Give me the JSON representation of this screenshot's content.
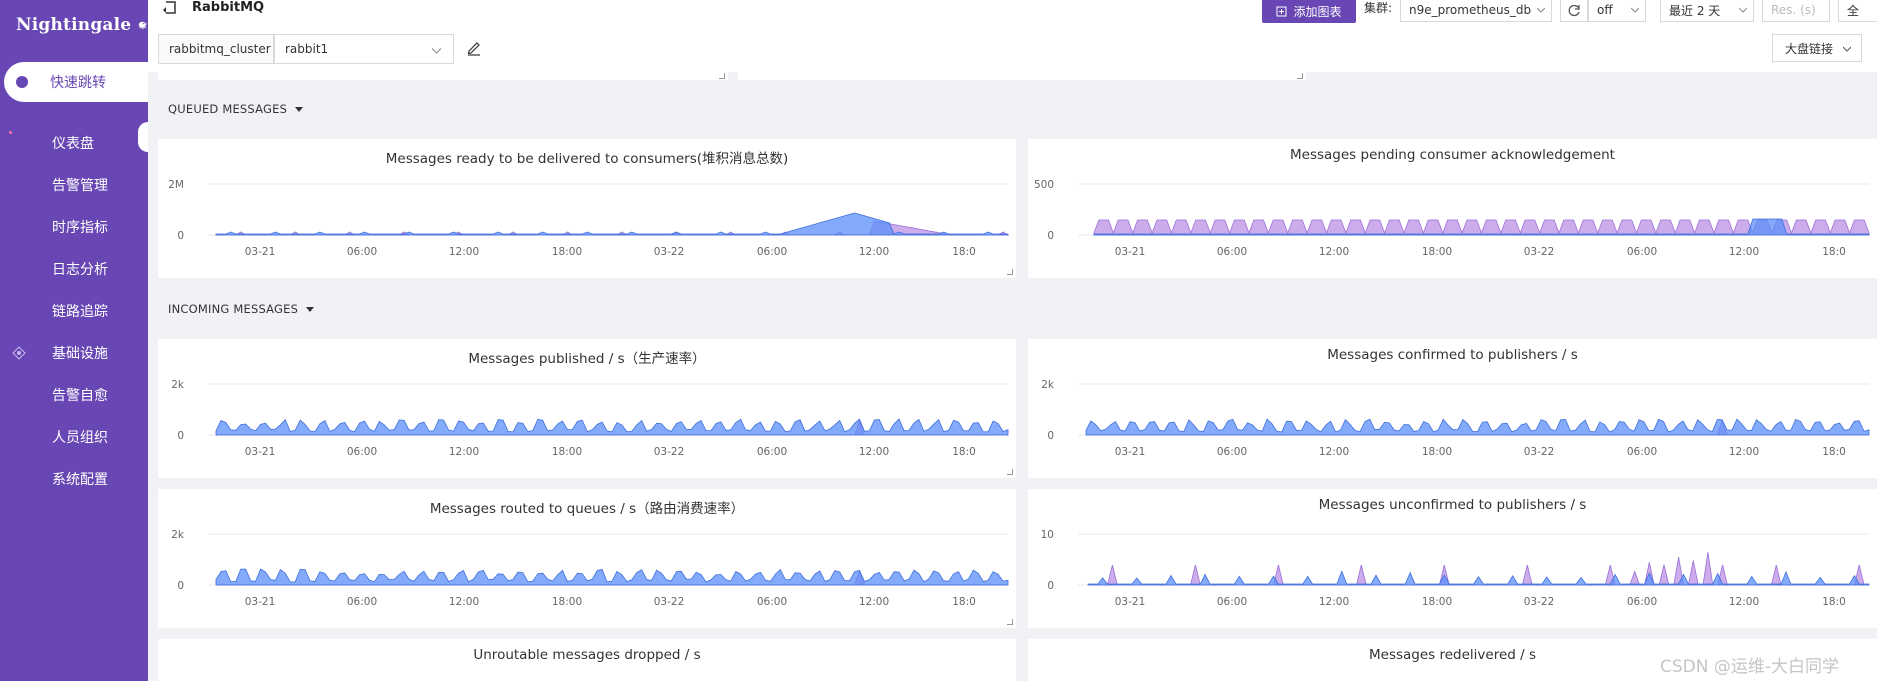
{
  "app": {
    "logo_text": "Nightingale",
    "quick_jump": "快速跳转",
    "menu": [
      {
        "label": "仪表盘",
        "icon": "dashboard-icon"
      },
      {
        "label": "告警管理",
        "icon": "alert-icon"
      },
      {
        "label": "时序指标",
        "icon": "metrics-icon"
      },
      {
        "label": "日志分析",
        "icon": "log-icon"
      },
      {
        "label": "链路追踪",
        "icon": "trace-icon"
      },
      {
        "label": "基础设施",
        "icon": "infra-icon"
      },
      {
        "label": "告警自愈",
        "icon": "selfheal-icon"
      },
      {
        "label": "人员组织",
        "icon": "users-icon"
      },
      {
        "label": "系统配置",
        "icon": "settings-icon"
      }
    ]
  },
  "header": {
    "title": "RabbitMQ",
    "add_chart": "添加图表",
    "cluster_label": "集群:",
    "cluster_value": "n9e_prometheus_db",
    "refresh_value": "off",
    "time_range": "最近 2 天",
    "resolution_placeholder": "Res. (s)",
    "fullscreen": "全",
    "variable_name": "rabbitmq_cluster",
    "variable_value": "rabbit1",
    "dashboard_links": "大盘链接",
    "colors": {
      "primary": "#6846b4",
      "series_blue": "#5b8ff9",
      "series_purple": "#c39ee8"
    }
  },
  "groups": [
    {
      "title": "QUEUED MESSAGES",
      "panels": [
        {
          "title": "Messages ready to be delivered to consumers(堆积消息总数)",
          "y_ticks": [
            "2M",
            "0"
          ],
          "x_ticks": [
            "03-21",
            "06:00",
            "12:00",
            "18:00",
            "03-22",
            "06:00",
            "12:00",
            "18:0"
          ]
        },
        {
          "title": "Messages pending consumer acknowledgement",
          "y_ticks": [
            "500",
            "0"
          ],
          "x_ticks": [
            "03-21",
            "06:00",
            "12:00",
            "18:00",
            "03-22",
            "06:00",
            "12:00",
            "18:0"
          ]
        }
      ]
    },
    {
      "title": "INCOMING MESSAGES",
      "panels": [
        {
          "title": "Messages published / s（生产速率）",
          "y_ticks": [
            "2k",
            "0"
          ],
          "x_ticks": [
            "03-21",
            "06:00",
            "12:00",
            "18:00",
            "03-22",
            "06:00",
            "12:00",
            "18:0"
          ]
        },
        {
          "title": "Messages confirmed to publishers / s",
          "y_ticks": [
            "2k",
            "0"
          ],
          "x_ticks": [
            "03-21",
            "06:00",
            "12:00",
            "18:00",
            "03-22",
            "06:00",
            "12:00",
            "18:0"
          ]
        },
        {
          "title": "Messages routed to queues / s（路由消费速率）",
          "y_ticks": [
            "2k",
            "0"
          ],
          "x_ticks": [
            "03-21",
            "06:00",
            "12:00",
            "18:00",
            "03-22",
            "06:00",
            "12:00",
            "18:0"
          ]
        },
        {
          "title": "Messages unconfirmed to publishers / s",
          "y_ticks": [
            "10",
            "0"
          ],
          "x_ticks": [
            "03-21",
            "06:00",
            "12:00",
            "18:00",
            "03-22",
            "06:00",
            "12:00",
            "18:0"
          ]
        },
        {
          "title": "Unroutable messages dropped / s"
        },
        {
          "title": "Messages redelivered / s"
        }
      ]
    }
  ],
  "watermark": "CSDN @运维-大白同学"
}
